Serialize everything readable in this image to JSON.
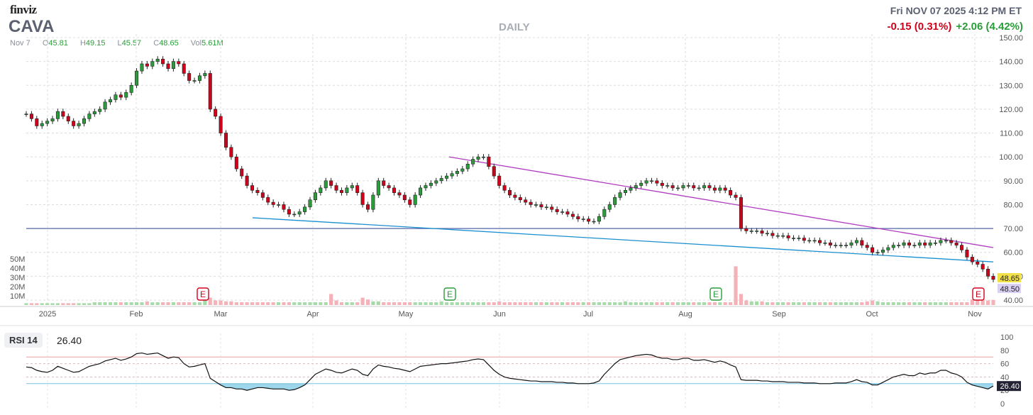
{
  "header": {
    "logo": "finviz",
    "ticker": "CAVA",
    "period": "DAILY",
    "datetime": "Fri NOV 07 2025 4:12 PM ET",
    "change_after": "-0.15 (0.31%)",
    "change_day": "+2.06 (4.42%)"
  },
  "ohlc": {
    "date": "Nov 7",
    "o_label": "O",
    "o": "45.81",
    "h_label": "H",
    "h": "49.15",
    "l_label": "L",
    "l": "45.57",
    "c_label": "C",
    "c": "48.65",
    "vol_label": "Vol",
    "vol": "5.61M"
  },
  "rsi": {
    "label": "RSI 14",
    "value": "26.40"
  },
  "colors": {
    "up": "#2a9d3a",
    "down": "#d0021b",
    "hline": "#5566aa",
    "support": "#1a8fd0",
    "resistance": "#b03cc0",
    "rsi_fill": "#4fb4dc"
  },
  "chart_data": {
    "type": "candlestick",
    "y_ticks": [
      "150.00",
      "140.00",
      "130.00",
      "120.00",
      "110.00",
      "100.00",
      "90.00",
      "80.00",
      "70.00",
      "60.00",
      "50.00",
      "40.00"
    ],
    "ylim": [
      40,
      150
    ],
    "vol_ticks": [
      "50M",
      "40M",
      "30M",
      "20M",
      "10M"
    ],
    "x_labels": [
      "2025",
      "Feb",
      "Mar",
      "Apr",
      "May",
      "Jun",
      "Jul",
      "Aug",
      "Sep",
      "Oct",
      "Nov"
    ],
    "last_price": "48.65",
    "after_price": "48.50",
    "earnings_marker": "E",
    "earnings_months": [
      "Mar",
      "May",
      "Aug",
      "Nov"
    ],
    "rsi_ticks": [
      "100",
      "80",
      "60",
      "40",
      "20",
      "0"
    ],
    "rsi_levels": {
      "overbought": 70,
      "oversold": 30
    },
    "horizontal_line": 70,
    "closes": [
      118,
      116,
      113,
      114,
      115,
      116,
      119,
      117,
      115,
      113,
      114,
      116,
      118,
      119,
      120,
      123,
      124,
      126,
      125,
      127,
      130,
      136,
      139,
      138,
      140,
      141,
      139,
      137,
      140,
      139,
      135,
      132,
      132,
      134,
      135,
      120,
      117,
      110,
      104,
      100,
      95,
      92,
      88,
      86,
      85,
      83,
      81,
      80,
      80,
      78,
      76,
      76,
      77,
      79,
      82,
      85,
      87,
      90,
      88,
      86,
      85,
      87,
      88,
      85,
      80,
      78,
      84,
      90,
      88,
      87,
      85,
      84,
      82,
      80,
      84,
      87,
      88,
      89,
      90,
      91,
      92,
      93,
      94,
      95,
      97,
      99,
      100,
      100,
      96,
      92,
      88,
      86,
      84,
      83,
      82,
      81,
      80,
      80,
      79,
      79,
      78,
      77,
      77,
      76,
      75,
      74,
      74,
      73,
      73,
      75,
      78,
      80,
      83,
      85,
      86,
      87,
      88,
      89,
      90,
      90,
      89,
      88,
      88,
      87,
      87,
      88,
      88,
      87,
      87,
      88,
      87,
      86,
      87,
      86,
      84,
      83,
      70,
      69,
      69,
      69,
      68,
      68,
      67,
      67,
      67,
      66,
      66,
      66,
      65,
      65,
      65,
      64,
      64,
      63,
      63,
      63,
      63,
      64,
      65,
      63,
      62,
      60,
      60,
      61,
      62,
      63,
      63,
      64,
      63,
      63,
      64,
      63,
      64,
      64,
      65,
      65,
      64,
      63,
      61,
      58,
      56,
      55,
      53,
      50,
      48.65
    ],
    "volume_m": [
      2,
      2,
      2,
      2,
      2,
      2,
      2,
      2,
      2,
      2,
      2,
      2,
      2,
      3,
      3,
      3,
      3,
      3,
      3,
      3,
      3,
      3,
      3,
      4,
      3,
      3,
      3,
      3,
      3,
      3,
      3,
      3,
      3,
      3,
      5,
      8,
      5,
      5,
      4,
      4,
      3,
      3,
      3,
      3,
      3,
      3,
      3,
      3,
      3,
      3,
      3,
      3,
      3,
      3,
      3,
      3,
      3,
      3,
      12,
      5,
      3,
      3,
      3,
      3,
      8,
      6,
      4,
      4,
      3,
      3,
      3,
      3,
      3,
      3,
      3,
      3,
      3,
      3,
      3,
      4,
      3,
      3,
      3,
      3,
      3,
      3,
      3,
      3,
      3,
      3,
      4,
      3,
      3,
      3,
      3,
      3,
      3,
      3,
      3,
      3,
      3,
      3,
      3,
      3,
      3,
      3,
      3,
      3,
      3,
      3,
      3,
      3,
      3,
      3,
      4,
      3,
      3,
      3,
      3,
      3,
      3,
      3,
      3,
      3,
      3,
      3,
      3,
      3,
      3,
      3,
      3,
      3,
      3,
      3,
      3,
      42,
      12,
      5,
      4,
      4,
      4,
      3,
      3,
      3,
      3,
      3,
      3,
      3,
      3,
      3,
      3,
      3,
      3,
      3,
      3,
      3,
      3,
      3,
      3,
      3,
      4,
      5,
      4,
      3,
      3,
      3,
      3,
      3,
      3,
      3,
      3,
      3,
      3,
      3,
      3,
      3,
      3,
      3,
      3,
      3,
      6,
      8,
      6,
      5,
      5.61
    ],
    "rsi_values": [
      55,
      54,
      50,
      48,
      47,
      50,
      56,
      53,
      50,
      47,
      48,
      52,
      56,
      58,
      60,
      64,
      66,
      68,
      65,
      67,
      70,
      75,
      76,
      74,
      75,
      76,
      72,
      68,
      70,
      69,
      60,
      55,
      56,
      58,
      60,
      38,
      33,
      28,
      24,
      24,
      22,
      22,
      20,
      22,
      24,
      24,
      23,
      22,
      22,
      22,
      20,
      21,
      24,
      28,
      36,
      44,
      48,
      52,
      50,
      47,
      46,
      49,
      52,
      50,
      44,
      42,
      52,
      58,
      56,
      55,
      53,
      52,
      50,
      48,
      52,
      56,
      57,
      58,
      59,
      60,
      60,
      61,
      62,
      63,
      64,
      66,
      67,
      66,
      58,
      50,
      44,
      40,
      38,
      37,
      36,
      35,
      34,
      34,
      33,
      33,
      33,
      32,
      32,
      31,
      31,
      30,
      30,
      30,
      31,
      34,
      44,
      52,
      60,
      66,
      68,
      70,
      72,
      73,
      74,
      73,
      70,
      68,
      68,
      66,
      66,
      68,
      68,
      65,
      65,
      66,
      64,
      62,
      64,
      62,
      58,
      55,
      36,
      35,
      35,
      35,
      34,
      34,
      33,
      33,
      33,
      32,
      32,
      32,
      31,
      31,
      31,
      30,
      30,
      30,
      31,
      31,
      31,
      33,
      36,
      33,
      32,
      28,
      28,
      32,
      36,
      40,
      42,
      44,
      42,
      42,
      46,
      44,
      46,
      46,
      50,
      50,
      46,
      44,
      40,
      32,
      28,
      26,
      24,
      22,
      26.4
    ]
  }
}
